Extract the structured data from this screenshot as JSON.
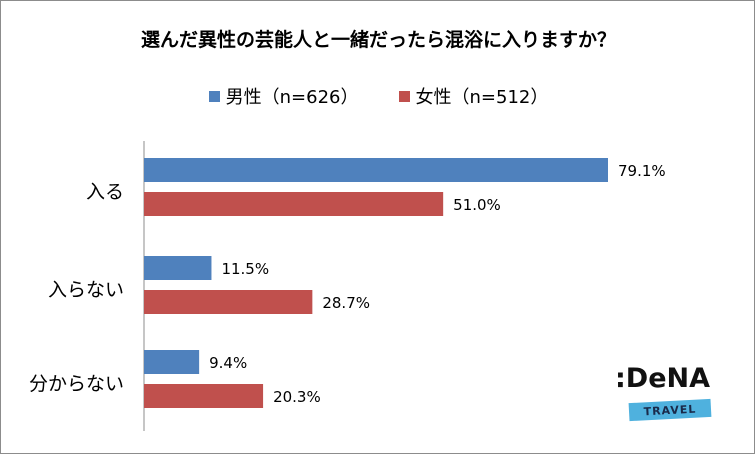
{
  "chart_data": {
    "type": "bar",
    "orientation": "horizontal",
    "title": "選んだ異性の芸能人と一緒だったら混浴に入りますか？",
    "categories": [
      "入る",
      "入らない",
      "分からない"
    ],
    "series": [
      {
        "name": "男性（n=626）",
        "color": "#4f81bd",
        "values": [
          79.1,
          11.5,
          9.4
        ],
        "labels": [
          "79.1%",
          "11.5%",
          "9.4%"
        ]
      },
      {
        "name": "女性（n=512）",
        "color": "#c0504d",
        "values": [
          51.0,
          28.7,
          20.3
        ],
        "labels": [
          "51.0%",
          "28.7%",
          "20.3%"
        ]
      }
    ],
    "xlim": [
      0,
      100
    ],
    "grid": false,
    "legend_position": "top"
  },
  "logo": {
    "word": ":DeNA",
    "band": "TRAVEL"
  }
}
